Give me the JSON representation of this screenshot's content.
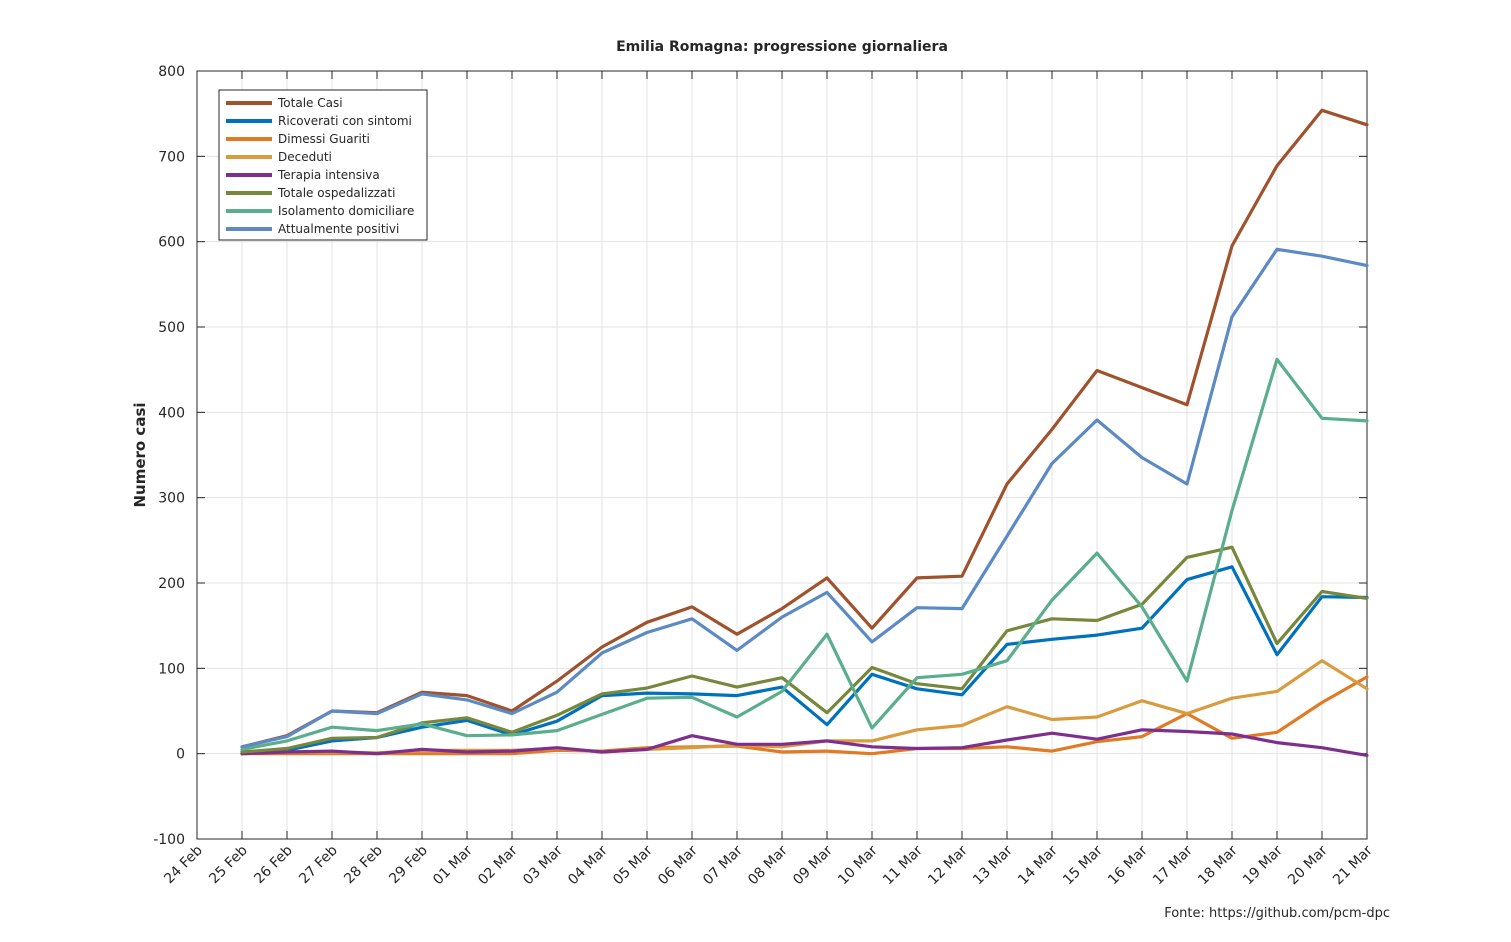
{
  "chart_data": {
    "type": "line",
    "title": "Emilia Romagna: progressione giornaliera",
    "xlabel": "",
    "ylabel": "Numero casi",
    "ylim": [
      -100,
      800
    ],
    "yticks": [
      -100,
      0,
      100,
      200,
      300,
      400,
      500,
      600,
      700,
      800
    ],
    "grid": true,
    "legend_position": "top-left",
    "categories": [
      "24 Feb",
      "25 Feb",
      "26 Feb",
      "27 Feb",
      "28 Feb",
      "29 Feb",
      "01 Mar",
      "02 Mar",
      "03 Mar",
      "04 Mar",
      "05 Mar",
      "06 Mar",
      "07 Mar",
      "08 Mar",
      "09 Mar",
      "10 Mar",
      "11 Mar",
      "12 Mar",
      "13 Mar",
      "14 Mar",
      "15 Mar",
      "16 Mar",
      "17 Mar",
      "18 Mar",
      "19 Mar",
      "20 Mar",
      "21 Mar"
    ],
    "series": [
      {
        "name": "Totale Casi",
        "color": "#a0522d",
        "values": [
          null,
          8,
          21,
          50,
          48,
          72,
          68,
          50,
          85,
          125,
          154,
          172,
          140,
          170,
          206,
          147,
          206,
          208,
          316,
          380,
          449,
          429,
          409,
          595,
          689,
          754,
          737
        ]
      },
      {
        "name": "Ricoverati con sintomi",
        "color": "#0072bd",
        "values": [
          null,
          2,
          4,
          15,
          19,
          31,
          39,
          22,
          38,
          68,
          71,
          70,
          68,
          78,
          34,
          93,
          76,
          69,
          128,
          134,
          139,
          147,
          204,
          219,
          116,
          184,
          183
        ]
      },
      {
        "name": "Dimessi Guariti",
        "color": "#e07b24",
        "values": [
          null,
          0,
          0,
          0,
          0,
          0,
          0,
          0,
          4,
          3,
          7,
          8,
          9,
          2,
          3,
          0,
          6,
          6,
          8,
          3,
          14,
          20,
          47,
          18,
          25,
          60,
          90
        ]
      },
      {
        "name": "Deceduti",
        "color": "#da9a3e",
        "values": [
          null,
          0,
          2,
          2,
          1,
          4,
          4,
          4,
          6,
          2,
          5,
          7,
          10,
          8,
          15,
          15,
          28,
          33,
          55,
          40,
          43,
          62,
          47,
          65,
          73,
          109,
          76
        ]
      },
      {
        "name": "Terapia intensiva",
        "color": "#7e2f8e",
        "values": [
          null,
          0,
          2,
          3,
          0,
          5,
          2,
          3,
          7,
          2,
          5,
          21,
          11,
          11,
          15,
          8,
          6,
          7,
          16,
          24,
          17,
          28,
          26,
          23,
          13,
          7,
          -2
        ]
      },
      {
        "name": "Totale ospedalizzati",
        "color": "#77883c",
        "values": [
          null,
          2,
          6,
          18,
          19,
          36,
          42,
          25,
          45,
          70,
          77,
          91,
          78,
          89,
          48,
          101,
          82,
          76,
          144,
          158,
          156,
          175,
          230,
          242,
          129,
          190,
          182
        ]
      },
      {
        "name": "Isolamento domiciliare",
        "color": "#5aae8c",
        "values": [
          null,
          5,
          15,
          31,
          27,
          35,
          21,
          22,
          27,
          46,
          65,
          66,
          43,
          73,
          140,
          30,
          89,
          93,
          109,
          180,
          235,
          172,
          85,
          285,
          462,
          393,
          390
        ]
      },
      {
        "name": "Attualmente positivi",
        "color": "#5b8ac4",
        "values": [
          null,
          8,
          20,
          50,
          47,
          70,
          63,
          47,
          72,
          118,
          142,
          158,
          121,
          160,
          189,
          131,
          171,
          170,
          255,
          340,
          391,
          347,
          316,
          512,
          591,
          583,
          572
        ]
      }
    ]
  },
  "footer": {
    "source": "Fonte:  https://github.com/pcm-dpc"
  }
}
